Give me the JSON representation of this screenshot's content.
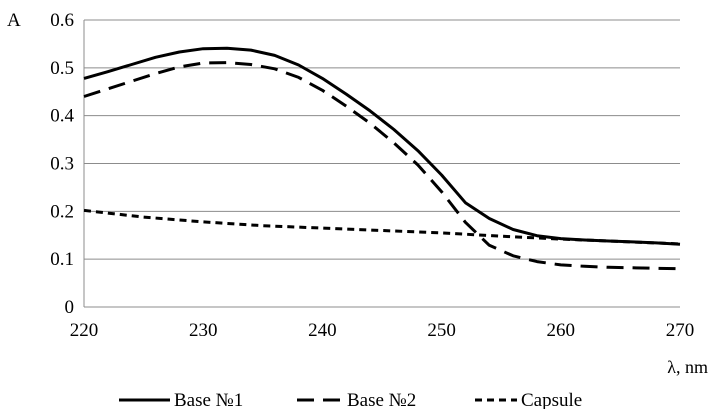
{
  "chart_data": {
    "type": "line",
    "title": "",
    "xlabel": "λ, nm",
    "ylabel": "A",
    "xlim": [
      220,
      270
    ],
    "ylim": [
      0,
      0.6
    ],
    "x_ticks": [
      220,
      230,
      240,
      250,
      260,
      270
    ],
    "y_ticks": [
      0,
      0.1,
      0.2,
      0.3,
      0.4,
      0.5,
      0.6
    ],
    "x_tick_labels": [
      "220",
      "230",
      "240",
      "250",
      "260",
      "270"
    ],
    "y_tick_labels": [
      "0",
      "0.1",
      "0.2",
      "0.3",
      "0.4",
      "0.5",
      "0.6"
    ],
    "grid": "horizontal",
    "legend_position": "bottom",
    "series": [
      {
        "name": "Base №1",
        "style": "solid",
        "color": "#000000",
        "x": [
          220,
          222,
          224,
          226,
          228,
          230,
          232,
          234,
          236,
          238,
          240,
          242,
          244,
          246,
          248,
          250,
          252,
          254,
          256,
          258,
          260,
          262,
          264,
          266,
          268,
          270
        ],
        "y": [
          0.478,
          0.492,
          0.507,
          0.522,
          0.533,
          0.54,
          0.541,
          0.537,
          0.526,
          0.506,
          0.478,
          0.445,
          0.41,
          0.371,
          0.327,
          0.276,
          0.218,
          0.185,
          0.162,
          0.149,
          0.143,
          0.14,
          0.138,
          0.136,
          0.134,
          0.131
        ]
      },
      {
        "name": "Base №2",
        "style": "dashed",
        "color": "#000000",
        "x": [
          220,
          222,
          224,
          226,
          228,
          230,
          232,
          234,
          236,
          238,
          240,
          242,
          244,
          246,
          248,
          250,
          252,
          254,
          256,
          258,
          260,
          262,
          264,
          266,
          268,
          270
        ],
        "y": [
          0.44,
          0.456,
          0.472,
          0.488,
          0.502,
          0.51,
          0.511,
          0.507,
          0.498,
          0.48,
          0.453,
          0.42,
          0.384,
          0.343,
          0.297,
          0.241,
          0.177,
          0.129,
          0.107,
          0.095,
          0.088,
          0.085,
          0.083,
          0.082,
          0.081,
          0.08
        ]
      },
      {
        "name": "Capsule",
        "style": "short-dashed",
        "color": "#000000",
        "x": [
          220,
          225,
          230,
          235,
          240,
          245,
          250,
          255,
          260,
          265,
          270
        ],
        "y": [
          0.202,
          0.188,
          0.178,
          0.17,
          0.165,
          0.16,
          0.155,
          0.148,
          0.142,
          0.137,
          0.132
        ]
      }
    ]
  }
}
